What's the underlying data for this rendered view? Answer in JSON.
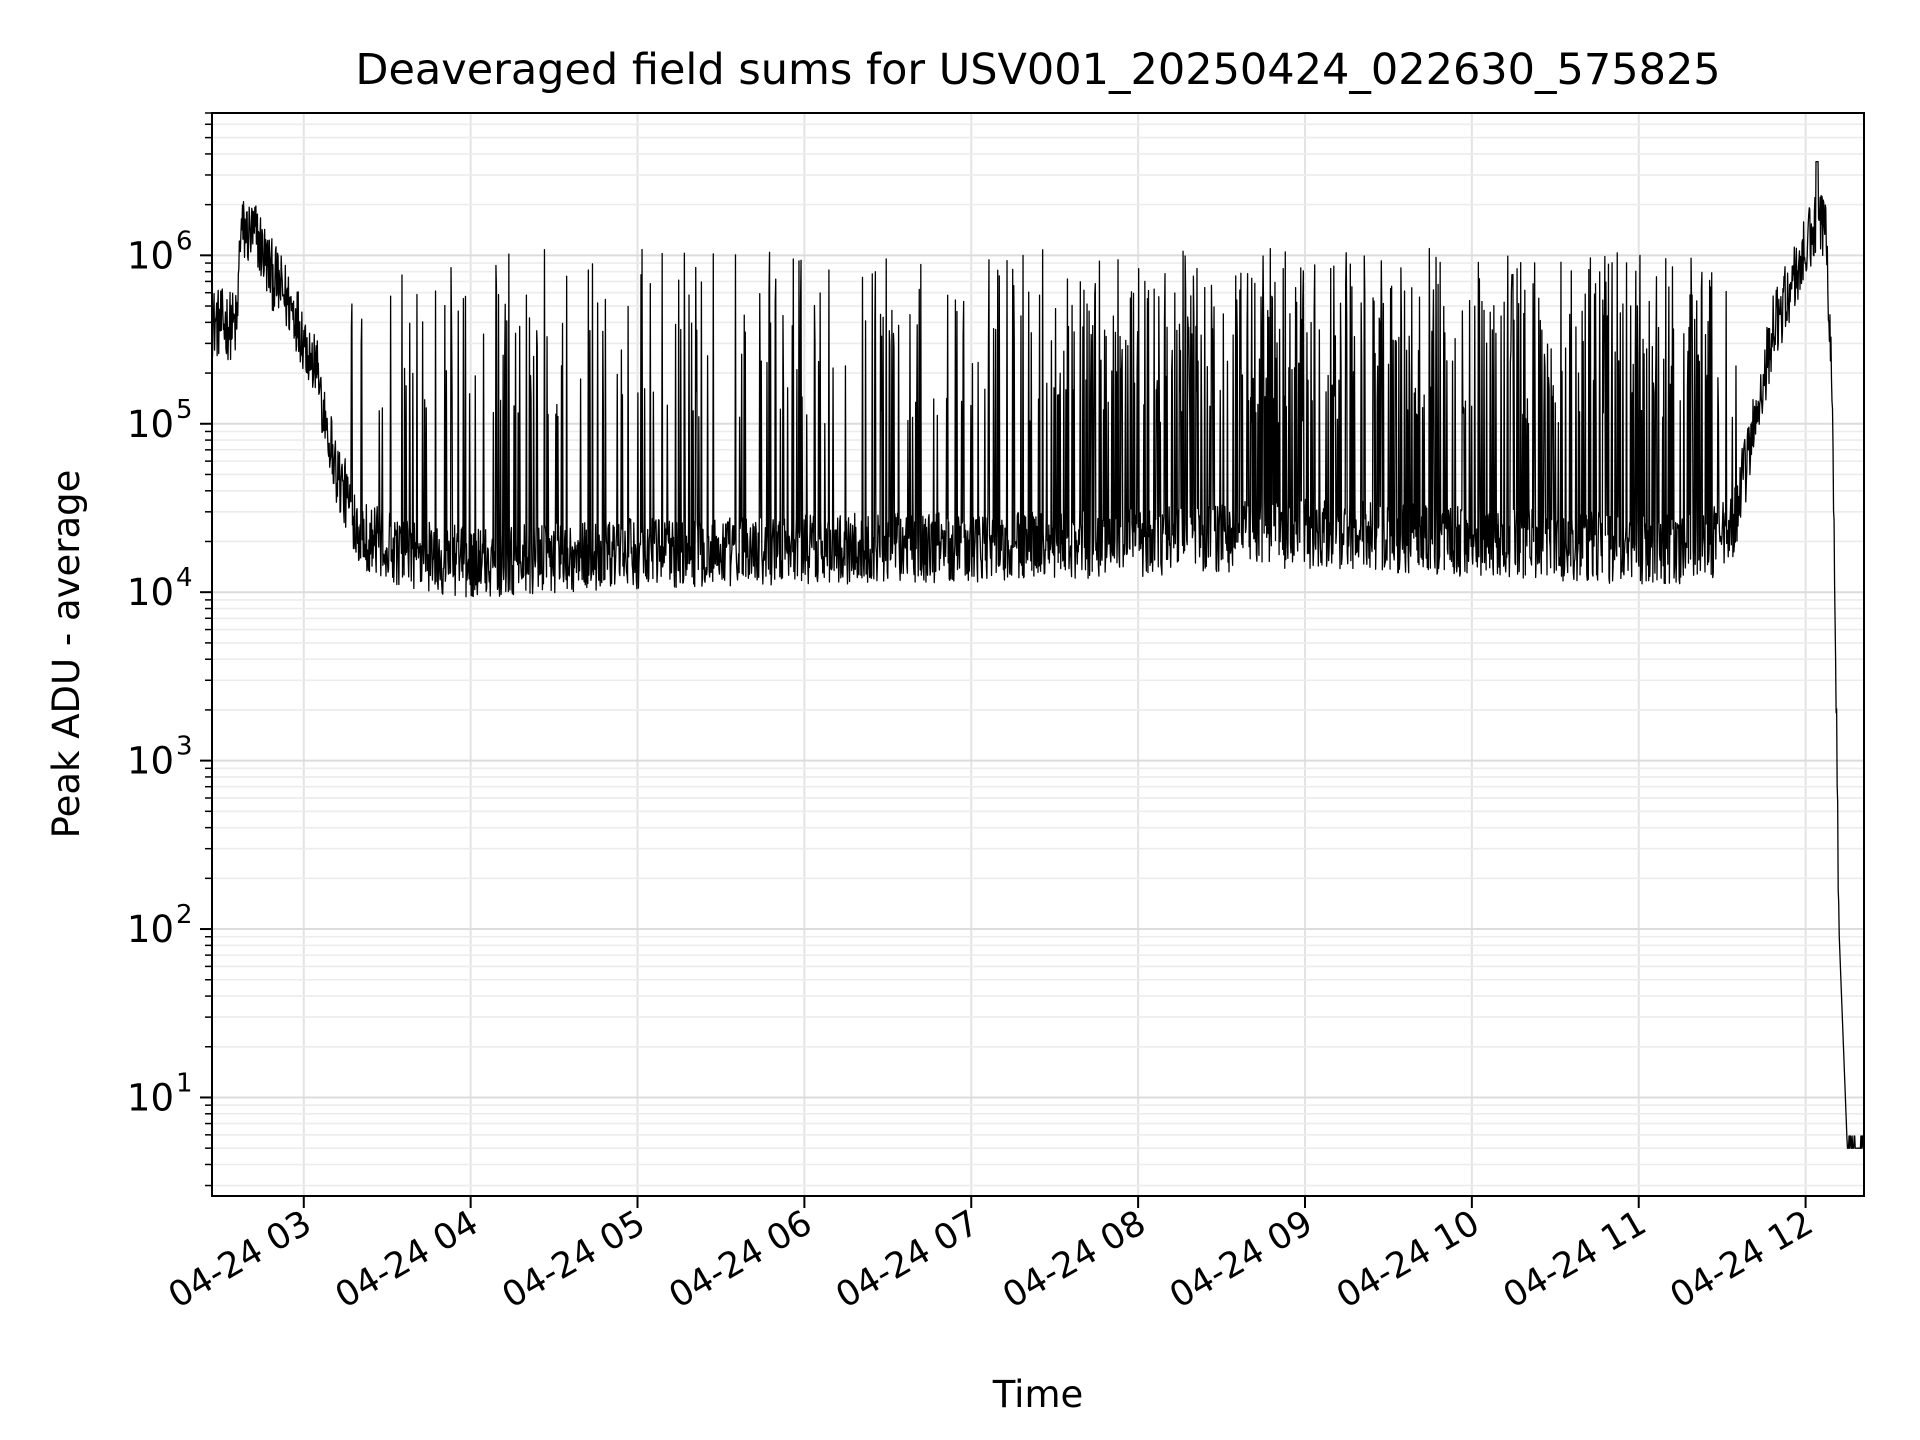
{
  "chart_data": {
    "type": "line",
    "title": "Deaveraged field sums for USV001_20250424_022630_575825",
    "xlabel": "Time",
    "ylabel": "Peak ADU - average",
    "yscale": "log",
    "xlim_hours": [
      2.45,
      12.35
    ],
    "ylim": [
      2.6,
      7000000
    ],
    "grid": true,
    "x_tick_labels": [
      "04-24 03",
      "04-24 04",
      "04-24 05",
      "04-24 06",
      "04-24 07",
      "04-24 08",
      "04-24 09",
      "04-24 10",
      "04-24 11",
      "04-24 12"
    ],
    "x_tick_hours": [
      3,
      4,
      5,
      6,
      7,
      8,
      9,
      10,
      11,
      12
    ],
    "y_ticks": [
      {
        "value": 10,
        "base": "10",
        "exp": "1"
      },
      {
        "value": 100,
        "base": "10",
        "exp": "2"
      },
      {
        "value": 1000,
        "base": "10",
        "exp": "3"
      },
      {
        "value": 10000,
        "base": "10",
        "exp": "4"
      },
      {
        "value": 100000,
        "base": "10",
        "exp": "5"
      },
      {
        "value": 1000000,
        "base": "10",
        "exp": "6"
      }
    ],
    "series": [
      {
        "name": "Peak ADU - average",
        "color": "#000000",
        "profile": {
          "x_hours": [
            2.45,
            2.6,
            2.62,
            2.72,
            2.8,
            2.95,
            3.08,
            3.2,
            3.35,
            3.6,
            4.0,
            5.0,
            6.0,
            7.0,
            8.0,
            9.0,
            10.0,
            11.0,
            11.35,
            11.55,
            11.65,
            11.8,
            11.95,
            12.05,
            12.12,
            12.16,
            12.2,
            12.25,
            12.35
          ],
          "y_median": [
            400000,
            380000,
            1400000,
            1300000,
            800000,
            450000,
            200000,
            50000,
            22000,
            17000,
            15000,
            17000,
            18000,
            18500,
            20000,
            22000,
            20000,
            18000,
            18000,
            22000,
            60000,
            350000,
            800000,
            1400000,
            1500000,
            200000,
            100,
            5,
            5
          ]
        },
        "noise_band": [
          10000,
          30000
        ],
        "spike_peak_range": [
          100000,
          1100000
        ],
        "max_peak": 3600000,
        "floor_value": 5
      }
    ]
  }
}
